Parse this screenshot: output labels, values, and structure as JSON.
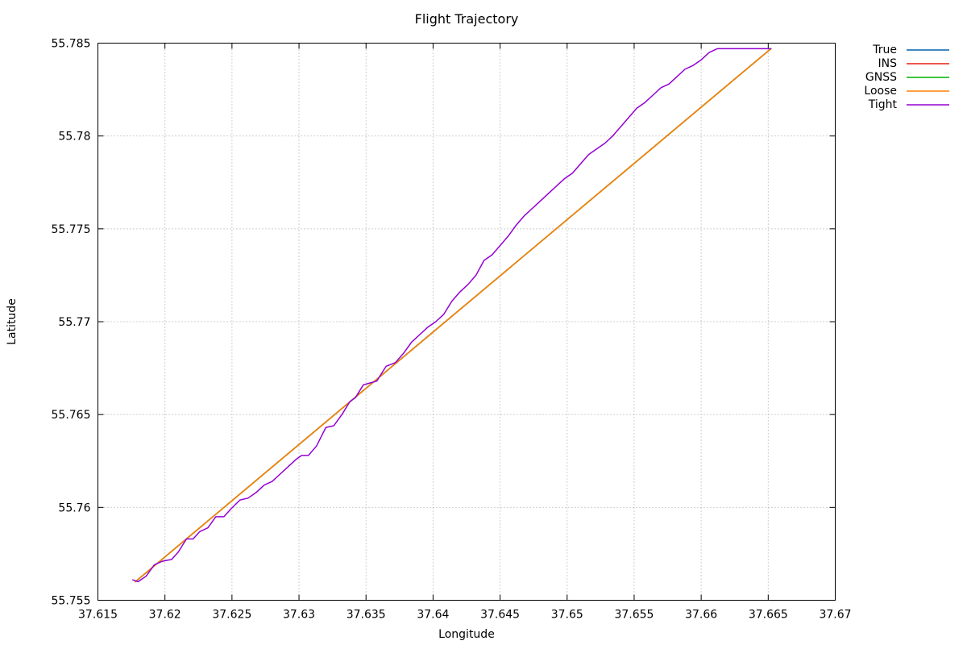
{
  "chart_data": {
    "type": "line",
    "title": "Flight Trajectory",
    "xlabel": "Longitude",
    "ylabel": "Latitude",
    "xlim": [
      37.615,
      37.67
    ],
    "ylim": [
      55.755,
      55.785
    ],
    "xticks": [
      "37.615",
      "37.62",
      "37.625",
      "37.63",
      "37.635",
      "37.64",
      "37.645",
      "37.65",
      "37.655",
      "37.66",
      "37.665",
      "37.67"
    ],
    "yticks": [
      "55.755",
      "55.76",
      "55.765",
      "55.77",
      "55.775",
      "55.78",
      "55.785"
    ],
    "grid": true,
    "legend_position": "outside-top-right",
    "series": [
      {
        "name": "True",
        "color": "#0060ad",
        "x": [
          37.6178,
          37.6652
        ],
        "y": [
          55.756,
          55.7847
        ]
      },
      {
        "name": "INS",
        "color": "#e51e10",
        "x": [
          37.6178,
          37.6652
        ],
        "y": [
          55.756,
          55.7847
        ]
      },
      {
        "name": "GNSS",
        "color": "#00b000",
        "x": [
          37.6178,
          37.6652
        ],
        "y": [
          55.756,
          55.7847
        ]
      },
      {
        "name": "Loose",
        "color": "#ff8000",
        "x": [
          37.6178,
          37.6652
        ],
        "y": [
          55.756,
          55.7847
        ]
      },
      {
        "name": "Tight",
        "color": "#9400d3",
        "x": [
          37.6176,
          37.618,
          37.6182,
          37.6186,
          37.6192,
          37.6198,
          37.6205,
          37.621,
          37.6216,
          37.6221,
          37.6226,
          37.6232,
          37.6238,
          37.6244,
          37.6249,
          37.6256,
          37.6262,
          37.6268,
          37.6274,
          37.628,
          37.6286,
          37.6292,
          37.6298,
          37.6302,
          37.6307,
          37.6313,
          37.632,
          37.6326,
          37.6332,
          37.6338,
          37.6342,
          37.6348,
          37.6353,
          37.6358,
          37.6365,
          37.6372,
          37.6378,
          37.6384,
          37.639,
          37.6396,
          37.6402,
          37.6408,
          37.6414,
          37.642,
          37.6426,
          37.6432,
          37.6438,
          37.6444,
          37.645,
          37.6456,
          37.6462,
          37.6468,
          37.6474,
          37.648,
          37.6486,
          37.6492,
          37.6498,
          37.6504,
          37.651,
          37.6516,
          37.6522,
          37.6528,
          37.6534,
          37.654,
          37.6546,
          37.6552,
          37.6558,
          37.6564,
          37.657,
          37.6576,
          37.6582,
          37.6588,
          37.6594,
          37.66,
          37.6606,
          37.6612,
          37.6618,
          37.6624,
          37.663,
          37.6636,
          37.6642,
          37.6648,
          37.6652
        ],
        "y": [
          55.7561,
          55.756,
          55.7561,
          55.7563,
          55.7569,
          55.7571,
          55.7572,
          55.7576,
          55.7583,
          55.7583,
          55.7587,
          55.7589,
          55.7595,
          55.7595,
          55.7599,
          55.7604,
          55.7605,
          55.7608,
          55.7612,
          55.7614,
          55.7618,
          55.7622,
          55.7626,
          55.7628,
          55.7628,
          55.7633,
          55.7643,
          55.7644,
          55.765,
          55.7657,
          55.7659,
          55.7666,
          55.7667,
          55.7668,
          55.7676,
          55.7678,
          55.7683,
          55.7689,
          55.7693,
          55.7697,
          55.77,
          55.7704,
          55.7711,
          55.7716,
          55.772,
          55.7725,
          55.7733,
          55.7736,
          55.7741,
          55.7746,
          55.7752,
          55.7757,
          55.7761,
          55.7765,
          55.7769,
          55.7773,
          55.7777,
          55.778,
          55.7785,
          55.779,
          55.7793,
          55.7796,
          55.78,
          55.7805,
          55.781,
          55.7815,
          55.7818,
          55.7822,
          55.7826,
          55.7828,
          55.7832,
          55.7836,
          55.7838,
          55.7841,
          55.7845,
          55.7847,
          55.7847,
          55.7847,
          55.7847,
          55.7847,
          55.7847,
          55.7847,
          55.7847
        ]
      }
    ]
  }
}
